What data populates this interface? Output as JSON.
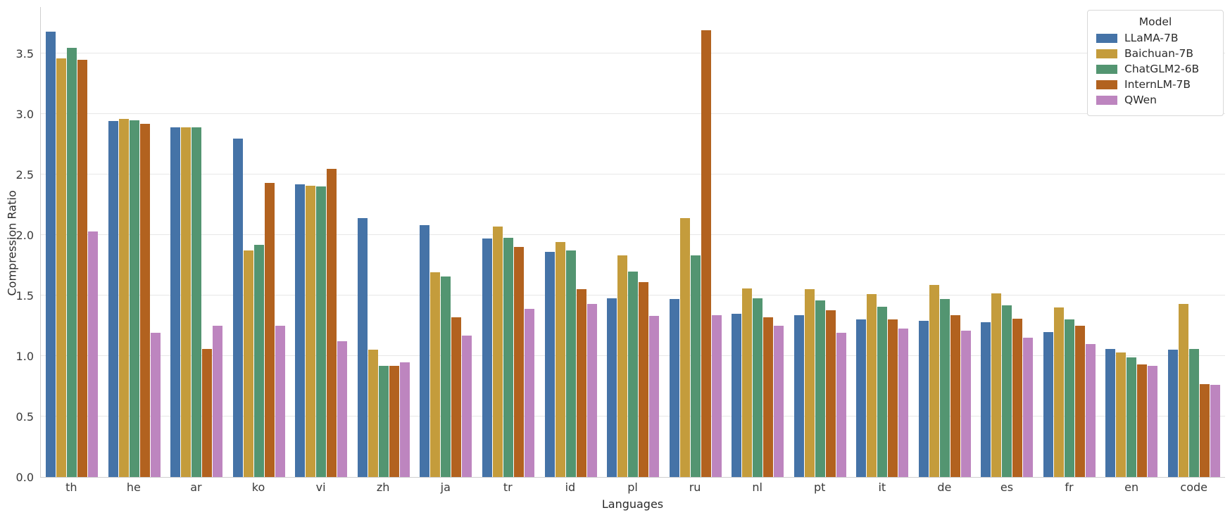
{
  "chart_data": {
    "type": "bar",
    "title": "",
    "xlabel": "Languages",
    "ylabel": "Compression Ratio",
    "ylim": [
      0,
      3.89
    ],
    "yticks": [
      0.0,
      0.5,
      1.0,
      1.5,
      2.0,
      2.5,
      3.0,
      3.5
    ],
    "grid": true,
    "legend_title": "Model",
    "legend_position": "upper right",
    "categories": [
      "th",
      "he",
      "ar",
      "ko",
      "vi",
      "zh",
      "ja",
      "tr",
      "id",
      "pl",
      "ru",
      "nl",
      "pt",
      "it",
      "de",
      "es",
      "fr",
      "en",
      "code"
    ],
    "series": [
      {
        "name": "LLaMA-7B",
        "color": "#4573a7",
        "values": [
          3.68,
          2.94,
          2.89,
          2.8,
          2.42,
          2.14,
          2.08,
          1.97,
          1.86,
          1.48,
          1.47,
          1.35,
          1.34,
          1.3,
          1.29,
          1.28,
          1.2,
          1.06,
          1.05
        ]
      },
      {
        "name": "Baichuan-7B",
        "color": "#c49c3c",
        "values": [
          3.46,
          2.96,
          2.89,
          1.87,
          2.41,
          1.05,
          1.69,
          2.07,
          1.94,
          1.83,
          2.14,
          1.56,
          1.55,
          1.51,
          1.59,
          1.52,
          1.4,
          1.03,
          1.43
        ]
      },
      {
        "name": "ChatGLM2-6B",
        "color": "#539571",
        "values": [
          3.55,
          2.95,
          2.89,
          1.92,
          2.4,
          0.92,
          1.66,
          1.98,
          1.87,
          1.7,
          1.83,
          1.48,
          1.46,
          1.41,
          1.47,
          1.42,
          1.3,
          0.99,
          1.06
        ]
      },
      {
        "name": "InternLM-7B",
        "color": "#b2621f",
        "values": [
          3.45,
          2.92,
          1.06,
          2.43,
          2.55,
          0.92,
          1.32,
          1.9,
          1.55,
          1.61,
          3.69,
          1.32,
          1.38,
          1.3,
          1.34,
          1.31,
          1.25,
          0.93,
          0.77
        ]
      },
      {
        "name": "QWen",
        "color": "#bd85bf",
        "values": [
          2.03,
          1.19,
          1.25,
          1.25,
          1.12,
          0.95,
          1.17,
          1.39,
          1.43,
          1.33,
          1.34,
          1.25,
          1.19,
          1.23,
          1.21,
          1.15,
          1.1,
          0.92,
          0.76
        ]
      }
    ],
    "colors": {
      "grid": "#e7e7e7",
      "spine": "#cfcfcf",
      "text": "#2b2b2b"
    }
  }
}
